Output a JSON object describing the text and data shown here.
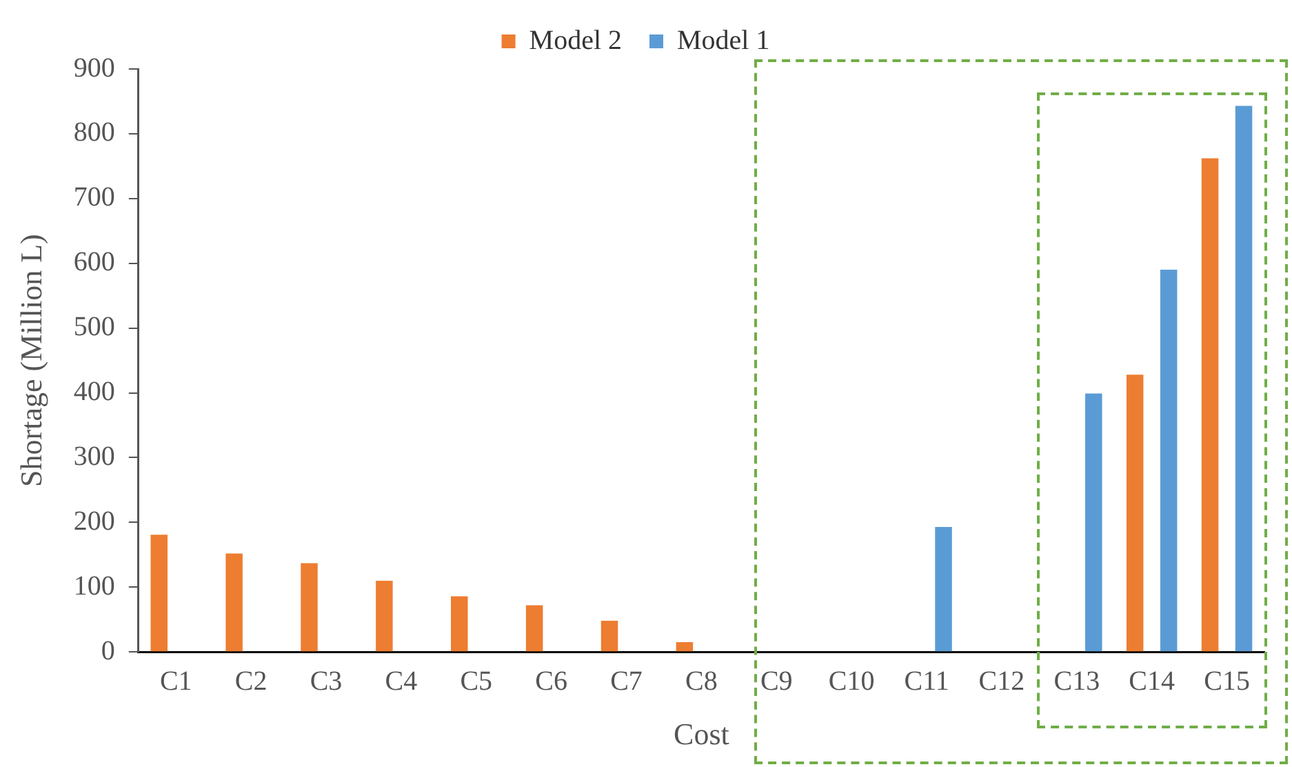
{
  "chart_data": {
    "type": "bar",
    "xlabel": "Cost",
    "ylabel": "Shortage (Million L)",
    "categories": [
      "C1",
      "C2",
      "C3",
      "C4",
      "C5",
      "C6",
      "C7",
      "C8",
      "C9",
      "C10",
      "C11",
      "C12",
      "C13",
      "C14",
      "C15"
    ],
    "series": [
      {
        "name": "Model 2",
        "color": "#ed7d31",
        "values": [
          181,
          152,
          137,
          110,
          86,
          72,
          48,
          15,
          0,
          0,
          0,
          0,
          0,
          428,
          762
        ]
      },
      {
        "name": "Model 1",
        "color": "#5b9bd5",
        "values": [
          0,
          0,
          0,
          0,
          0,
          0,
          0,
          0,
          0,
          0,
          193,
          0,
          399,
          590,
          843
        ]
      }
    ],
    "ylim": [
      0,
      900
    ],
    "yticks": [
      0,
      100,
      200,
      300,
      400,
      500,
      600,
      700,
      800,
      900
    ],
    "grid": false,
    "legend": "top"
  }
}
